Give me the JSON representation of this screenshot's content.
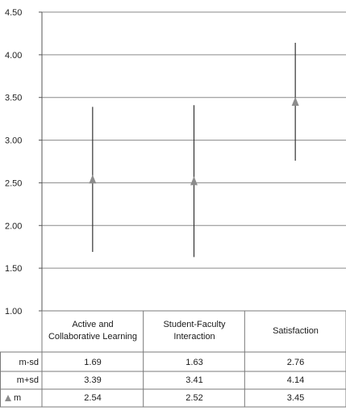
{
  "chart_data": {
    "type": "errorbar",
    "categories": [
      "Active and Collaborative Learning",
      "Student-Faculty Interaction",
      "Satisfaction"
    ],
    "category_lines": [
      [
        "Active and",
        "Collaborative Learning"
      ],
      [
        "Student-Faculty",
        "Interaction"
      ],
      [
        "Satisfaction"
      ]
    ],
    "series": [
      {
        "name": "m-sd",
        "values": [
          1.69,
          1.63,
          2.76
        ]
      },
      {
        "name": "m+sd",
        "values": [
          3.39,
          3.41,
          4.14
        ]
      },
      {
        "name": "m",
        "values": [
          2.54,
          2.52,
          3.45
        ]
      }
    ],
    "y_ticks": [
      "1.00",
      "1.50",
      "2.00",
      "2.50",
      "3.00",
      "3.50",
      "4.00",
      "4.50"
    ],
    "ylim": [
      1.0,
      4.5
    ],
    "grid": true,
    "marker_color": "#8c8c8c",
    "line_color": "#333333",
    "grid_color": "#8a8a8a"
  },
  "table": {
    "rows": [
      {
        "label": "m-sd",
        "values": [
          "1.69",
          "1.63",
          "2.76"
        ]
      },
      {
        "label": "m+sd",
        "values": [
          "3.39",
          "3.41",
          "4.14"
        ]
      },
      {
        "label": "m",
        "values": [
          "2.54",
          "2.52",
          "3.45"
        ]
      }
    ]
  }
}
